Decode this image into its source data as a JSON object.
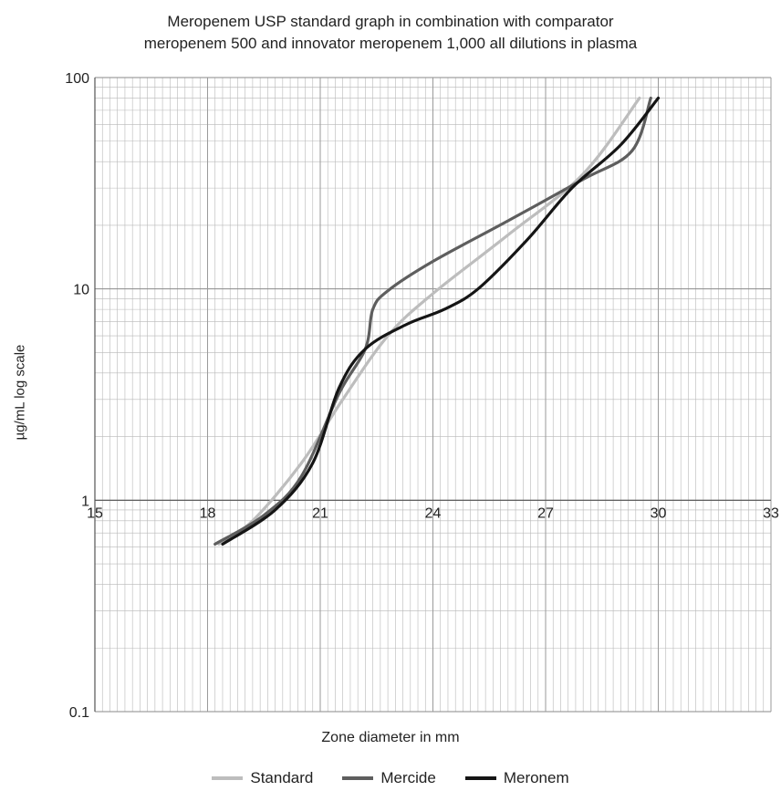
{
  "chart_data": {
    "type": "line",
    "title": [
      "Meropenem USP standard graph in combination with comparator",
      "meropenem 500 and innovator meropenem 1,000 all dilutions in plasma"
    ],
    "xlabel": "Zone diameter in mm",
    "ylabel": "µg/mL log scale",
    "xlim": [
      15,
      33
    ],
    "ylim": [
      0.1,
      100
    ],
    "yscale": "log",
    "x_ticks": [
      "15",
      "18",
      "21",
      "24",
      "27",
      "30",
      "33"
    ],
    "y_ticks": [
      "100",
      "10",
      "1",
      "0.1"
    ],
    "x_axis_crosses_y": 1,
    "grid": true,
    "legend_position": "bottom",
    "series": [
      {
        "name": "Standard",
        "color": "#bdbdbd",
        "points": [
          [
            18.3,
            0.62
          ],
          [
            19.2,
            0.8
          ],
          [
            20.5,
            1.5
          ],
          [
            21.6,
            3.0
          ],
          [
            22.8,
            6.0
          ],
          [
            24.0,
            9.5
          ],
          [
            26.0,
            18.0
          ],
          [
            28.0,
            35.0
          ],
          [
            29.5,
            80.0
          ]
        ]
      },
      {
        "name": "Mercide",
        "color": "#5e5e5e",
        "points": [
          [
            18.2,
            0.62
          ],
          [
            19.5,
            0.85
          ],
          [
            20.5,
            1.3
          ],
          [
            21.5,
            3.2
          ],
          [
            22.2,
            5.2
          ],
          [
            22.4,
            8.0
          ],
          [
            22.8,
            9.8
          ],
          [
            24.0,
            13.5
          ],
          [
            26.0,
            21.0
          ],
          [
            28.0,
            33.0
          ],
          [
            29.3,
            45.0
          ],
          [
            29.8,
            80.0
          ]
        ]
      },
      {
        "name": "Meronem",
        "color": "#151515",
        "points": [
          [
            18.4,
            0.62
          ],
          [
            19.8,
            0.9
          ],
          [
            20.8,
            1.5
          ],
          [
            21.5,
            3.4
          ],
          [
            22.2,
            5.2
          ],
          [
            23.3,
            6.8
          ],
          [
            24.3,
            8.0
          ],
          [
            25.2,
            10.0
          ],
          [
            26.5,
            17.0
          ],
          [
            27.7,
            30.0
          ],
          [
            29.0,
            48.0
          ],
          [
            30.0,
            80.0
          ]
        ]
      }
    ]
  }
}
